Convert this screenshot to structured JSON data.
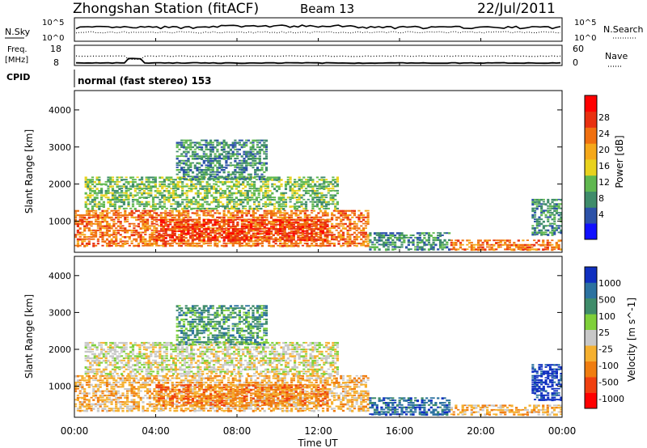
{
  "header": {
    "station": "Zhongshan Station (fitACF)",
    "beam": "Beam 13",
    "date": "22/Jul/2011"
  },
  "top_panels": {
    "nsky_label": "N.Sky",
    "nsky_ticks": [
      "10^5",
      "10^0"
    ],
    "nsearch_label": "N.Search",
    "nsearch_ticks": [
      "10^5",
      "10^0"
    ],
    "freq_label_1": "Freq.",
    "freq_label_2": "[MHz]",
    "freq_ticks": [
      "18",
      "8"
    ],
    "nave_label": "Nave",
    "nave_ticks": [
      "60",
      "0"
    ],
    "cpid_label": "CPID",
    "cpid_value": "normal (fast stereo) 153"
  },
  "colors": {
    "power_scale": [
      "#1010ff",
      "#2c52a8",
      "#3f8c6a",
      "#60b850",
      "#e8d21e",
      "#f5a81a",
      "#f07010",
      "#e83010",
      "#ff0000"
    ],
    "velocity_scale": [
      "#ff0000",
      "#f04010",
      "#f07d10",
      "#f5b030",
      "#c8c8c8",
      "#7fd03a",
      "#3f8c6a",
      "#2c72a0",
      "#1030c0"
    ]
  },
  "chart_data": [
    {
      "type": "heatmap",
      "panel": "power",
      "xlabel": "Time UT",
      "ylabel": "Slant Range [km]",
      "ylim": [
        180,
        4500
      ],
      "xlim": [
        0,
        24
      ],
      "x_ticks": [
        "00:00",
        "04:00",
        "08:00",
        "12:00",
        "16:00",
        "20:00",
        "00:00"
      ],
      "y_ticks": [
        "1000",
        "2000",
        "3000",
        "4000"
      ],
      "colorbar_label": "Power [dB]",
      "colorbar_ticks": [
        "28",
        "24",
        "20",
        "16",
        "12",
        "8",
        "4"
      ],
      "colorbar_range": [
        0,
        32
      ],
      "regions": [
        {
          "t": [
            0.0,
            14.5
          ],
          "r": [
            300,
            1300
          ],
          "value": 24
        },
        {
          "t": [
            4.0,
            12.5
          ],
          "r": [
            450,
            1050
          ],
          "value": 28
        },
        {
          "t": [
            0.5,
            13.0
          ],
          "r": [
            1300,
            2200
          ],
          "value": 12
        },
        {
          "t": [
            5.0,
            9.5
          ],
          "r": [
            2100,
            3200
          ],
          "value": 6
        },
        {
          "t": [
            14.5,
            18.5
          ],
          "r": [
            200,
            700
          ],
          "value": 8
        },
        {
          "t": [
            18.5,
            24.0
          ],
          "r": [
            200,
            500
          ],
          "value": 22
        },
        {
          "t": [
            22.5,
            24.0
          ],
          "r": [
            600,
            1600
          ],
          "value": 8
        }
      ]
    },
    {
      "type": "heatmap",
      "panel": "velocity",
      "xlabel": "Time UT",
      "ylabel": "Slant Range [km]",
      "ylim": [
        180,
        4500
      ],
      "xlim": [
        0,
        24
      ],
      "x_ticks": [
        "00:00",
        "04:00",
        "08:00",
        "12:00",
        "16:00",
        "20:00",
        "00:00"
      ],
      "y_ticks": [
        "1000",
        "2000",
        "3000",
        "4000"
      ],
      "colorbar_label": "Velocity [m s^-1]",
      "colorbar_ticks": [
        "1000",
        "500",
        "100",
        "25",
        "-25",
        "-100",
        "-500",
        "-1000"
      ],
      "regions": [
        {
          "t": [
            0.0,
            14.5
          ],
          "r": [
            300,
            1300
          ],
          "value": -100
        },
        {
          "t": [
            4.0,
            12.5
          ],
          "r": [
            450,
            1050
          ],
          "value": -500
        },
        {
          "t": [
            0.5,
            13.0
          ],
          "r": [
            1300,
            2200
          ],
          "value": -25
        },
        {
          "t": [
            5.0,
            9.5
          ],
          "r": [
            2100,
            3200
          ],
          "value": 100
        },
        {
          "t": [
            14.5,
            18.5
          ],
          "r": [
            200,
            700
          ],
          "value": 500
        },
        {
          "t": [
            18.5,
            24.0
          ],
          "r": [
            200,
            500
          ],
          "value": -100
        },
        {
          "t": [
            22.5,
            24.0
          ],
          "r": [
            600,
            1600
          ],
          "value": 1000
        }
      ]
    }
  ]
}
